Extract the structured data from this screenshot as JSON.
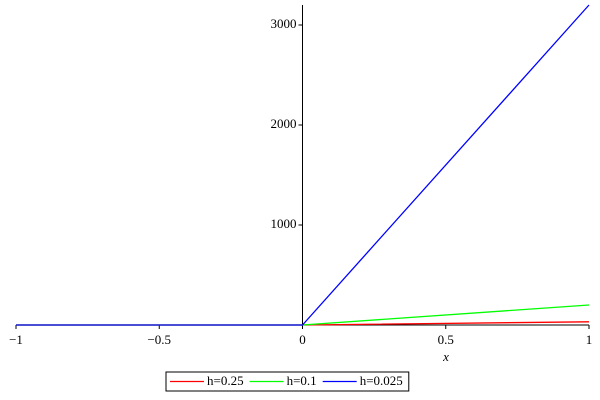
{
  "chart_data": {
    "type": "line",
    "x_label": "x",
    "x": [
      -1,
      0,
      1
    ],
    "series": [
      {
        "name": "h=0.25",
        "color": "#ff0000",
        "values": [
          0,
          0,
          32
        ]
      },
      {
        "name": "h=0.1",
        "color": "#00ff00",
        "values": [
          0,
          0,
          200
        ]
      },
      {
        "name": "h=0.025",
        "color": "#0000ff",
        "values": [
          0,
          0,
          3200
        ]
      }
    ],
    "xlim": [
      -1,
      1
    ],
    "xticks": [
      {
        "value": -1,
        "label": "−1"
      },
      {
        "value": -0.5,
        "label": "−0.5"
      },
      0,
      0.5,
      1
    ],
    "ylim": [
      0,
      3200
    ],
    "yticks": [
      1000,
      2000,
      3000
    ],
    "legend": "bottom"
  }
}
